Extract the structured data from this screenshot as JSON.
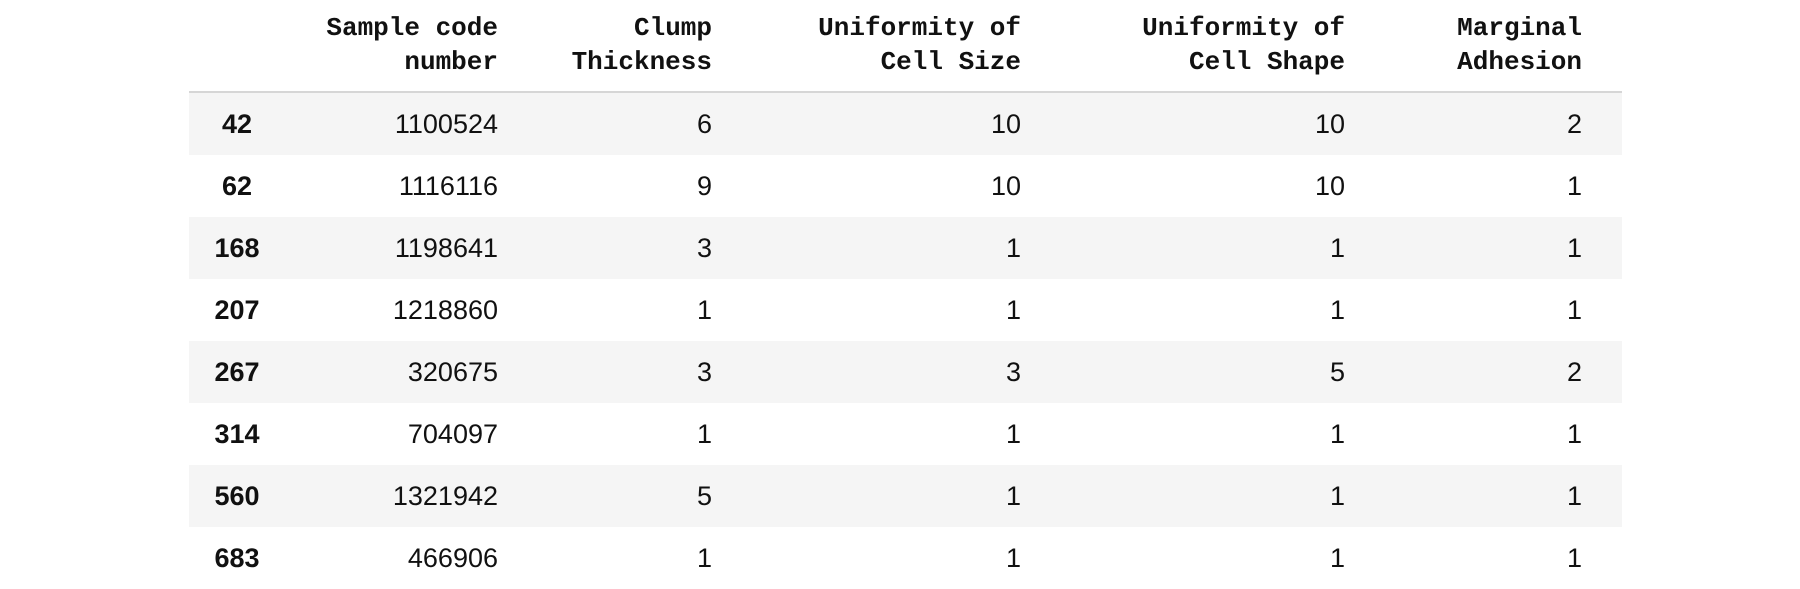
{
  "table": {
    "columns": [
      "",
      "Sample code\nnumber",
      "Clump\nThickness",
      "Uniformity of\nCell Size",
      "Uniformity of\nCell Shape",
      "Marginal\nAdhesion"
    ],
    "rows": [
      {
        "index": "42",
        "cells": [
          "1100524",
          "6",
          "10",
          "10",
          "2"
        ]
      },
      {
        "index": "62",
        "cells": [
          "1116116",
          "9",
          "10",
          "10",
          "1"
        ]
      },
      {
        "index": "168",
        "cells": [
          "1198641",
          "3",
          "1",
          "1",
          "1"
        ]
      },
      {
        "index": "207",
        "cells": [
          "1218860",
          "1",
          "1",
          "1",
          "1"
        ]
      },
      {
        "index": "267",
        "cells": [
          "320675",
          "3",
          "3",
          "5",
          "2"
        ]
      },
      {
        "index": "314",
        "cells": [
          "704097",
          "1",
          "1",
          "1",
          "1"
        ]
      },
      {
        "index": "560",
        "cells": [
          "1321942",
          "5",
          "1",
          "1",
          "1"
        ]
      },
      {
        "index": "683",
        "cells": [
          "466906",
          "1",
          "1",
          "1",
          "1"
        ]
      }
    ]
  }
}
